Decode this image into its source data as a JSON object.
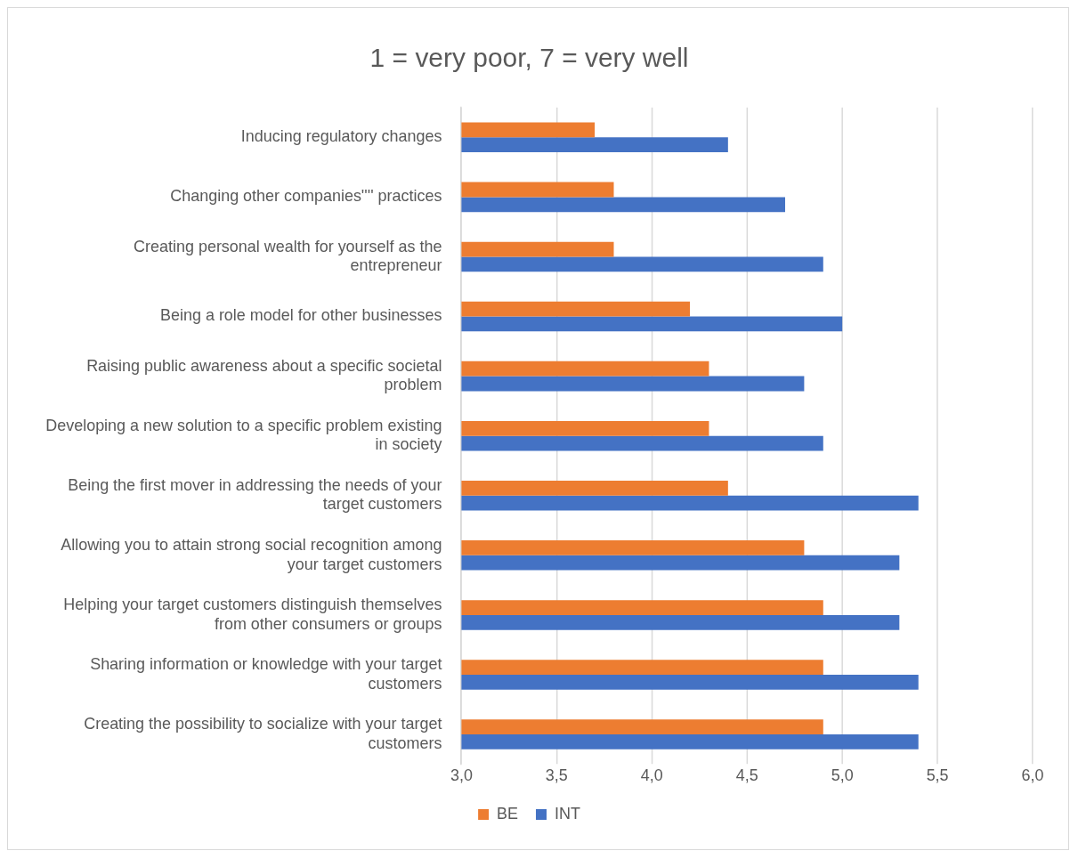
{
  "chart_data": {
    "type": "bar",
    "orientation": "horizontal",
    "title": "1 = very poor, 7 = very well",
    "categories": [
      "Inducing regulatory changes",
      "Changing other companies'''' practices",
      "Creating personal wealth for yourself as the entrepreneur",
      "Being a role model for other businesses",
      "Raising public awareness about a specific societal problem",
      "Developing a new solution to a specific problem existing in society",
      "Being the first mover in addressing the needs of your target customers",
      "Allowing you to attain strong social recognition among your target customers",
      "Helping your target customers distinguish themselves from other consumers or groups",
      "Sharing information or knowledge with your target customers",
      "Creating the possibility to socialize with your target customers"
    ],
    "series": [
      {
        "name": "BE",
        "color": "#ed7d31",
        "values": [
          3.7,
          3.8,
          3.8,
          4.2,
          4.3,
          4.3,
          4.4,
          4.8,
          4.9,
          4.9,
          4.9
        ]
      },
      {
        "name": "INT",
        "color": "#4472c4",
        "values": [
          4.4,
          4.7,
          4.9,
          5.0,
          4.8,
          4.9,
          5.4,
          5.3,
          5.3,
          5.4,
          5.4
        ]
      }
    ],
    "xlim": [
      3,
      6
    ],
    "xticks": [
      {
        "value": 3,
        "label": "3,0"
      },
      {
        "value": 3.5,
        "label": "3,5"
      },
      {
        "value": 4,
        "label": "4,0"
      },
      {
        "value": 4.5,
        "label": "4,5"
      },
      {
        "value": 5,
        "label": "5,0"
      },
      {
        "value": 5.5,
        "label": "5,5"
      },
      {
        "value": 6,
        "label": "6,0"
      }
    ],
    "grid": "x",
    "legend": "bottom"
  }
}
